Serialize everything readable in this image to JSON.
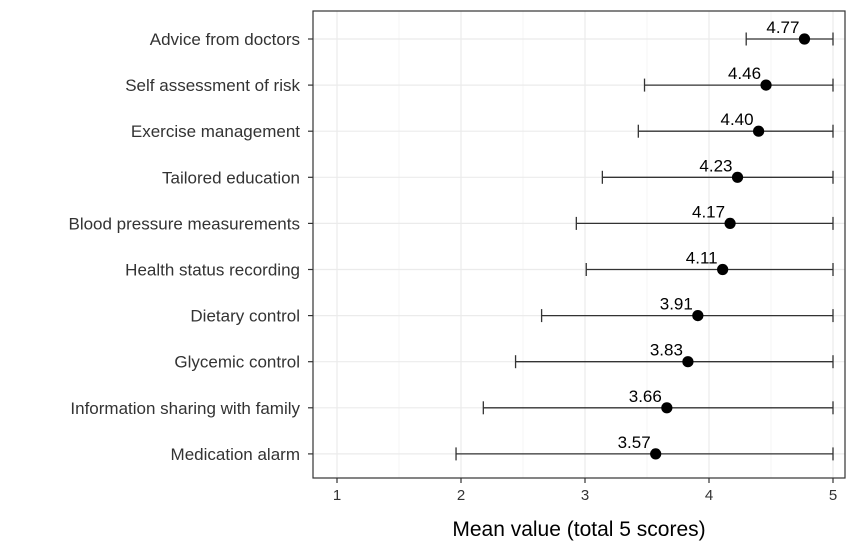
{
  "chart_data": {
    "type": "scatter",
    "title": "",
    "xlabel": "Mean value (total 5 scores)",
    "ylabel": "",
    "xlim": [
      0.8,
      5.1
    ],
    "x_ticks": [
      1,
      2,
      3,
      4,
      5
    ],
    "x_tick_labels": [
      "1",
      "2",
      "3",
      "4",
      "5"
    ],
    "grid": true,
    "legend": "none",
    "categories": [
      "Advice from doctors",
      "Self assessment of risk",
      "Exercise management",
      "Tailored education",
      "Blood pressure measurements",
      "Health status recording",
      "Dietary control",
      "Glycemic control",
      "Information sharing with family",
      "Medication alarm"
    ],
    "values": [
      4.77,
      4.46,
      4.4,
      4.23,
      4.17,
      4.11,
      3.91,
      3.83,
      3.66,
      3.57
    ],
    "value_labels": [
      "4.77",
      "4.46",
      "4.40",
      "4.23",
      "4.17",
      "4.11",
      "3.91",
      "3.83",
      "3.66",
      "3.57"
    ],
    "error_low": [
      4.3,
      3.48,
      3.43,
      3.14,
      2.93,
      3.01,
      2.65,
      2.44,
      2.18,
      1.96
    ],
    "error_high": [
      5.0,
      5.0,
      5.0,
      5.0,
      5.0,
      5.0,
      5.0,
      5.0,
      5.0,
      5.0
    ],
    "colors": {
      "point": "#000000",
      "errorbar": "#333333",
      "grid": "#ebebeb",
      "panel_border": "#333333",
      "background": "#ffffff"
    }
  }
}
